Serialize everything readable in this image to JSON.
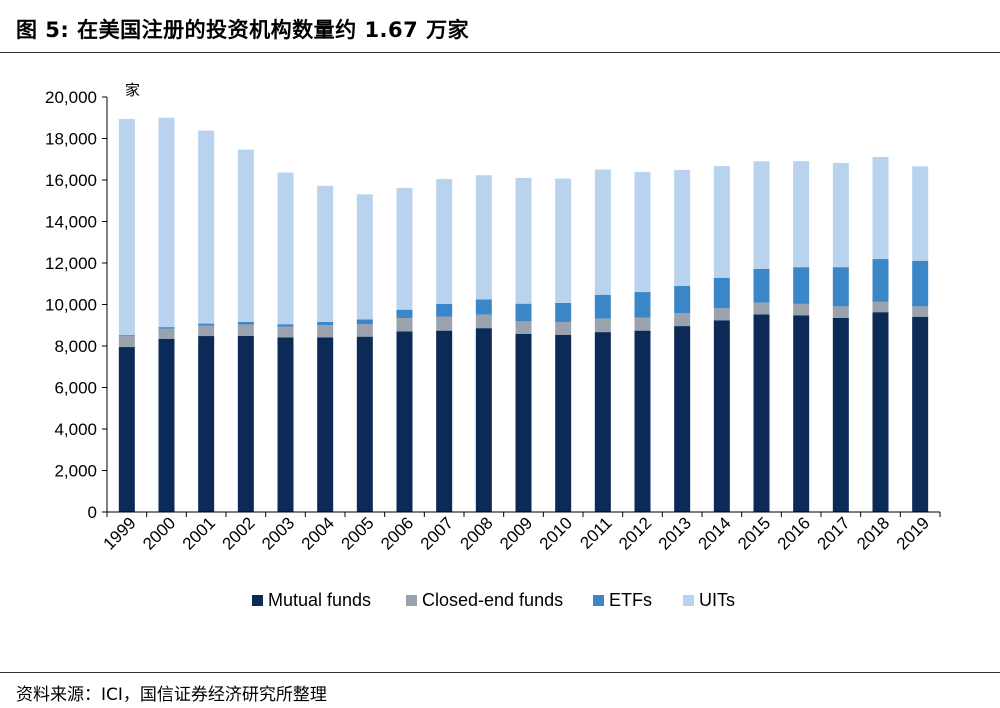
{
  "title": "图 5:  在美国注册的投资机构数量约 1.67 万家",
  "source": "资料来源：ICI，国信证券经济研究所整理",
  "chart_data": {
    "type": "bar",
    "stacked": true,
    "unit_label": "家",
    "categories": [
      "1999",
      "2000",
      "2001",
      "2002",
      "2003",
      "2004",
      "2005",
      "2006",
      "2007",
      "2008",
      "2009",
      "2010",
      "2011",
      "2012",
      "2013",
      "2014",
      "2015",
      "2016",
      "2017",
      "2018",
      "2019"
    ],
    "series": [
      {
        "name": "Mutual funds",
        "color": "#0b2a57",
        "values": [
          7950,
          8350,
          8480,
          8490,
          8410,
          8420,
          8450,
          8700,
          8740,
          8860,
          8590,
          8530,
          8670,
          8740,
          8960,
          9240,
          9520,
          9470,
          9360,
          9630,
          9410
        ]
      },
      {
        "name": "Closed-end funds",
        "color": "#9aa3ad",
        "values": [
          550,
          480,
          500,
          550,
          520,
          590,
          610,
          650,
          670,
          650,
          600,
          630,
          650,
          620,
          630,
          590,
          570,
          560,
          550,
          500,
          500
        ]
      },
      {
        "name": "ETFs",
        "color": "#3b86c6",
        "values": [
          30,
          80,
          100,
          120,
          120,
          150,
          220,
          400,
          620,
          730,
          850,
          920,
          1150,
          1240,
          1300,
          1460,
          1630,
          1770,
          1890,
          2060,
          2200
        ]
      },
      {
        "name": "UITs",
        "color": "#b9d3ee",
        "values": [
          10410,
          10090,
          9300,
          8300,
          7310,
          6560,
          6030,
          5870,
          6020,
          5990,
          6060,
          5990,
          6040,
          5790,
          5600,
          5380,
          5180,
          5110,
          5020,
          4920,
          4550
        ]
      }
    ],
    "ylim": [
      0,
      20000
    ],
    "yticks": [
      "0",
      "2,000",
      "4,000",
      "6,000",
      "8,000",
      "10,000",
      "12,000",
      "14,000",
      "16,000",
      "18,000",
      "20,000"
    ],
    "legend_position": "bottom",
    "grid": false
  }
}
